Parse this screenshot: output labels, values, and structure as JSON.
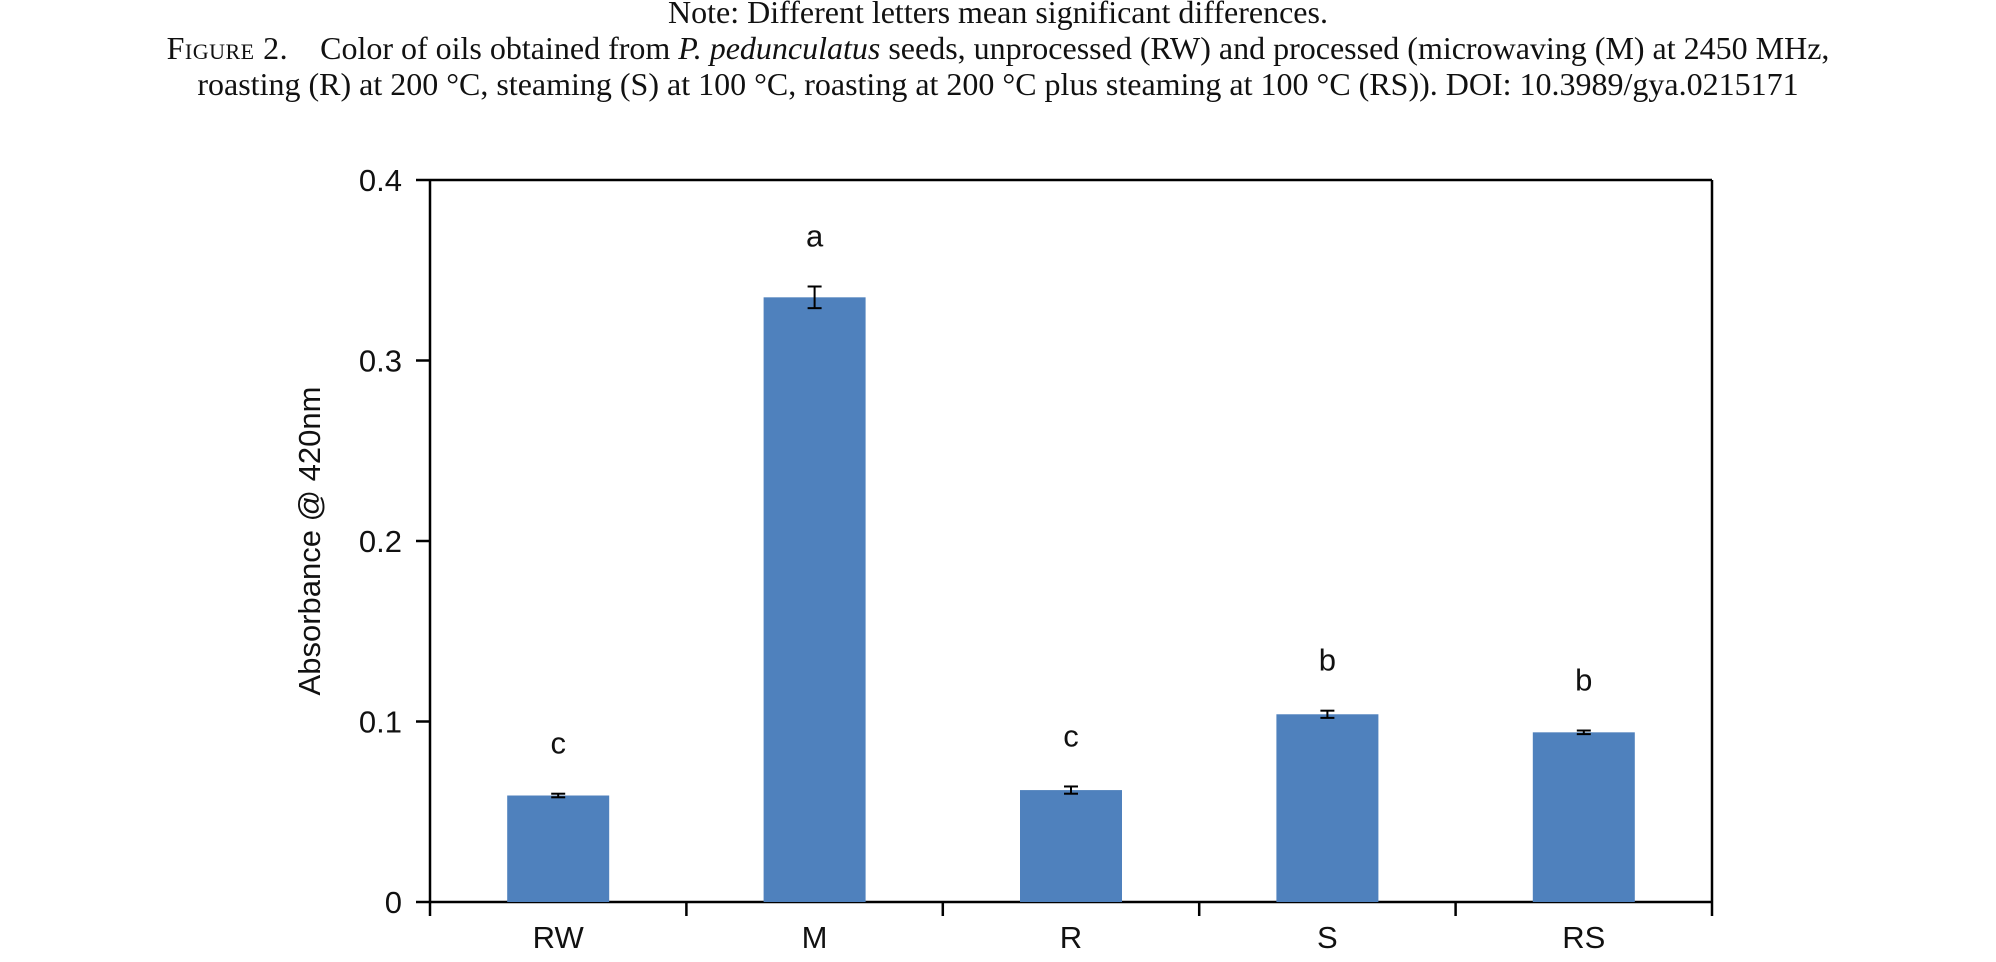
{
  "note": "Note: Different letters mean significant differences.",
  "caption": {
    "figure_label": "Figure 2.",
    "line1_before_italic": "Color of oils obtained from ",
    "italic": "P. pedunculatus",
    "line1_after_italic": " seeds, unprocessed (RW) and processed (microwaving (M) at 2450 MHz,",
    "line2": "roasting (R) at 200 °C, steaming (S) at 100 °C, roasting at 200 °C plus steaming at 100 °C (RS)). DOI: 10.3989/gya.0215171"
  },
  "colors": {
    "bar": "#4f81bd",
    "axis": "#000000",
    "text": "#111111"
  },
  "chart_data": {
    "type": "bar",
    "title": "",
    "xlabel": "",
    "ylabel": "Absorbance @ 420nm",
    "categories": [
      "RW",
      "M",
      "R",
      "S",
      "RS"
    ],
    "values": [
      0.059,
      0.335,
      0.062,
      0.104,
      0.094
    ],
    "errors": [
      0.001,
      0.006,
      0.002,
      0.002,
      0.001
    ],
    "significance_letters": [
      "c",
      "a",
      "c",
      "b",
      "b"
    ],
    "ylim": [
      0,
      0.4
    ],
    "yticks": [
      0,
      0.1,
      0.2,
      0.3,
      0.4
    ],
    "ytick_labels": [
      "0",
      "0.1",
      "0.2",
      "0.3",
      "0.4"
    ],
    "grid": false,
    "legend": "none"
  }
}
